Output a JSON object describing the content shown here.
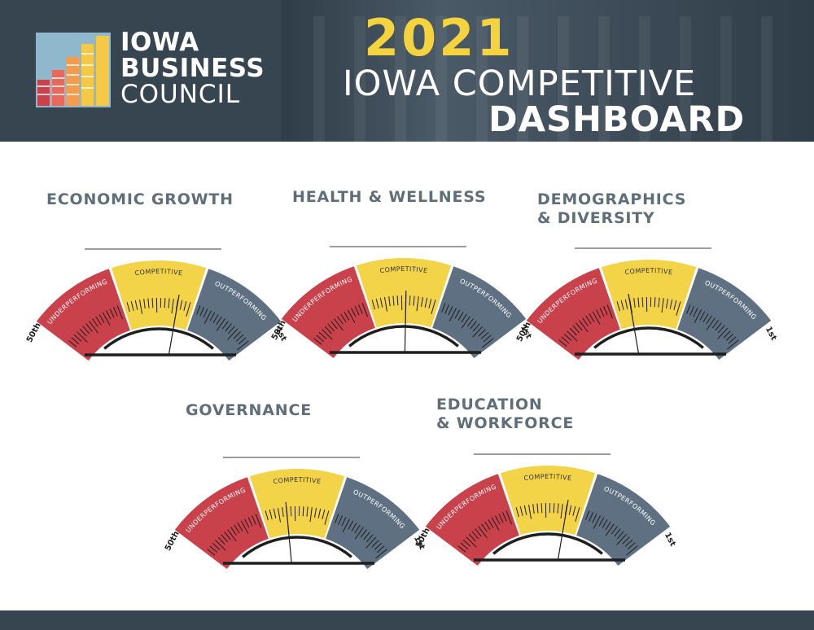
{
  "header": {
    "logo_line1": "IOWA",
    "logo_line2": "BUSINESS",
    "logo_line3": "COUNCIL",
    "year": "2021",
    "title_line1": "IOWA COMPETITIVE",
    "title_line2": "DASHBOARD"
  },
  "colors": {
    "header_bg": "#36454f",
    "year": "#f5d33f",
    "title_text": "#5f6e79",
    "underperforming": "#c8414b",
    "competitive": "#f3d347",
    "outperforming": "#5e7081",
    "logo_bars": [
      "#c8414b",
      "#e8685a",
      "#f39c4e",
      "#f5c945",
      "#8fb8cc"
    ]
  },
  "chart_data": [
    {
      "type": "gauge",
      "title_lines": [
        "ECONOMIC GROWTH"
      ],
      "segments": [
        "UNDERPERFORMING",
        "COMPETITIVE",
        "OUTPERFORMING"
      ],
      "range_labels": {
        "min": "50th",
        "max": "1st"
      },
      "scale": [
        50,
        1
      ],
      "needle_rank": 21
    },
    {
      "type": "gauge",
      "title_lines": [
        "HEALTH & WELLNESS"
      ],
      "segments": [
        "UNDERPERFORMING",
        "COMPETITIVE",
        "OUTPERFORMING"
      ],
      "range_labels": {
        "min": "50th",
        "max": "1st"
      },
      "scale": [
        50,
        1
      ],
      "needle_rank": 25
    },
    {
      "type": "gauge",
      "title_lines": [
        "DEMOGRAPHICS",
        "& DIVERSITY"
      ],
      "segments": [
        "UNDERPERFORMING",
        "COMPETITIVE",
        "OUTPERFORMING"
      ],
      "range_labels": {
        "min": "50th",
        "max": "1st"
      },
      "scale": [
        50,
        1
      ],
      "needle_rank": 30
    },
    {
      "type": "gauge",
      "title_lines": [
        "GOVERNANCE"
      ],
      "segments": [
        "UNDERPERFORMING",
        "COMPETITIVE",
        "OUTPERFORMING"
      ],
      "range_labels": {
        "min": "50th",
        "max": "1st"
      },
      "scale": [
        50,
        1
      ],
      "needle_rank": 28
    },
    {
      "type": "gauge",
      "title_lines": [
        "EDUCATION",
        "& WORKFORCE"
      ],
      "segments": [
        "UNDERPERFORMING",
        "COMPETITIVE",
        "OUTPERFORMING"
      ],
      "range_labels": {
        "min": "50th",
        "max": "1st"
      },
      "scale": [
        50,
        1
      ],
      "needle_rank": 21
    }
  ]
}
